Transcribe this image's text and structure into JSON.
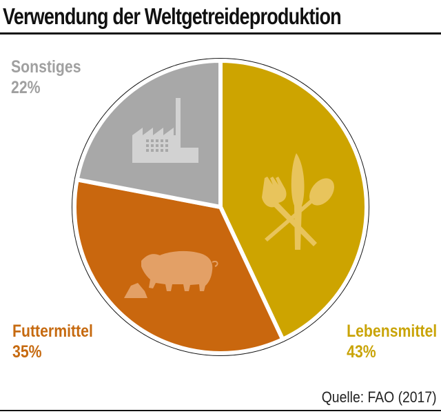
{
  "chart_data": {
    "type": "pie",
    "title": "Verwendung der Weltgetreideproduktion",
    "slices": [
      {
        "label": "Lebensmittel",
        "value": 43,
        "value_label": "43%",
        "color": "#cda400",
        "icon": "cutlery-icon"
      },
      {
        "label": "Futtermittel",
        "value": 35,
        "value_label": "35%",
        "color": "#c9670e",
        "icon": "pig-icon"
      },
      {
        "label": "Sonstiges",
        "value": 22,
        "value_label": "22%",
        "color": "#a8a8a8",
        "icon": "factory-icon"
      }
    ],
    "source": "Quelle: FAO (2017)"
  }
}
